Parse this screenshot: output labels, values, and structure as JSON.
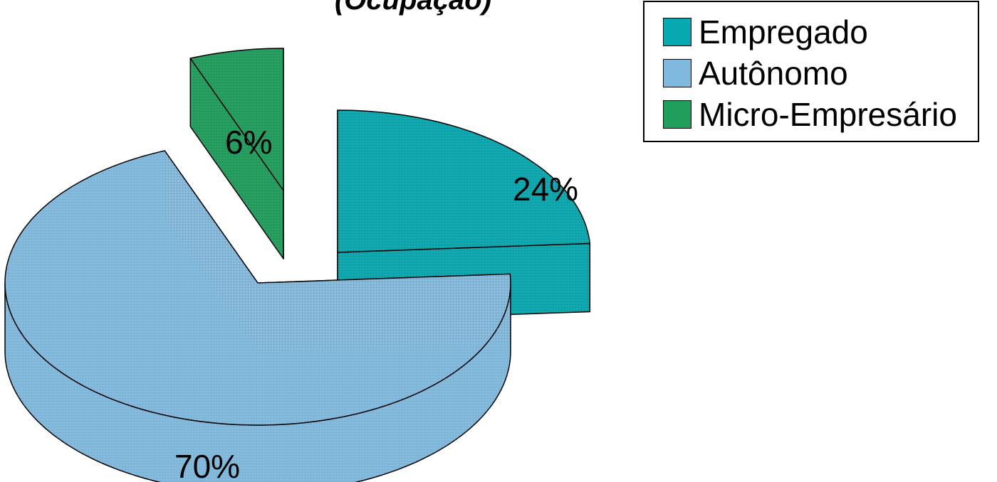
{
  "chart_data": {
    "type": "pie",
    "title": "(Ocupação)",
    "legend_position": "top-right",
    "slices": [
      {
        "name": "Empregado",
        "value": 24,
        "label": "24%",
        "color": "#08A8B0"
      },
      {
        "name": "Autônomo",
        "value": 70,
        "label": "70%",
        "color": "#7FB9DE"
      },
      {
        "name": "Micro-Empresário",
        "value": 6,
        "label": "6%",
        "color": "#1F9E5C"
      }
    ]
  }
}
